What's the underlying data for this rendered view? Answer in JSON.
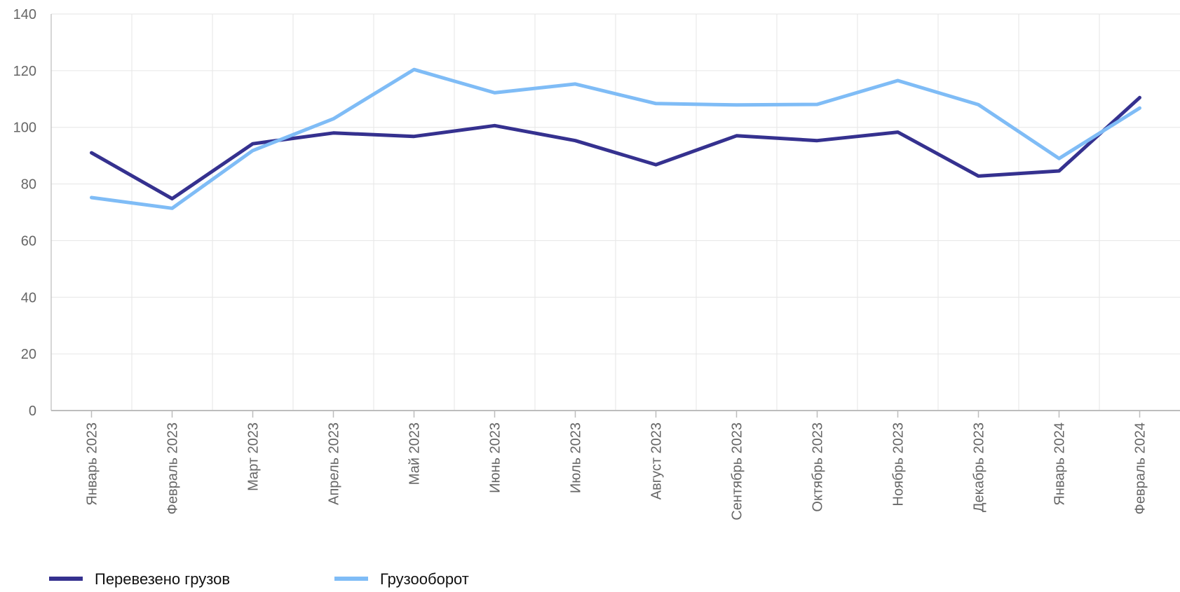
{
  "chart_data": {
    "type": "line",
    "categories": [
      "Январь 2023",
      "Февраль 2023",
      "Март 2023",
      "Апрель 2023",
      "Май 2023",
      "Июнь 2023",
      "Июль 2023",
      "Август 2023",
      "Сентябрь 2023",
      "Октябрь 2023",
      "Ноябрь 2023",
      "Декабрь 2023",
      "Январь 2024",
      "Февраль 2024"
    ],
    "series": [
      {
        "name": "Перевезено грузов",
        "color": "#35318f",
        "values": [
          91,
          74.8,
          94.2,
          98,
          96.8,
          100.6,
          95.3,
          86.8,
          97,
          95.3,
          98.3,
          82.8,
          84.6,
          110.5
        ]
      },
      {
        "name": "Грузооборот",
        "color": "#7fbcf6",
        "values": [
          75.2,
          71.4,
          91.8,
          103,
          120.4,
          112.2,
          115.3,
          108.4,
          107.9,
          108.1,
          116.5,
          108,
          89,
          106.8
        ]
      }
    ],
    "ylim": [
      0,
      140
    ],
    "yticks": [
      0,
      20,
      40,
      60,
      80,
      100,
      120,
      140
    ],
    "grid": true,
    "legend_position": "bottom-left",
    "title": "",
    "xlabel": "",
    "ylabel": ""
  }
}
